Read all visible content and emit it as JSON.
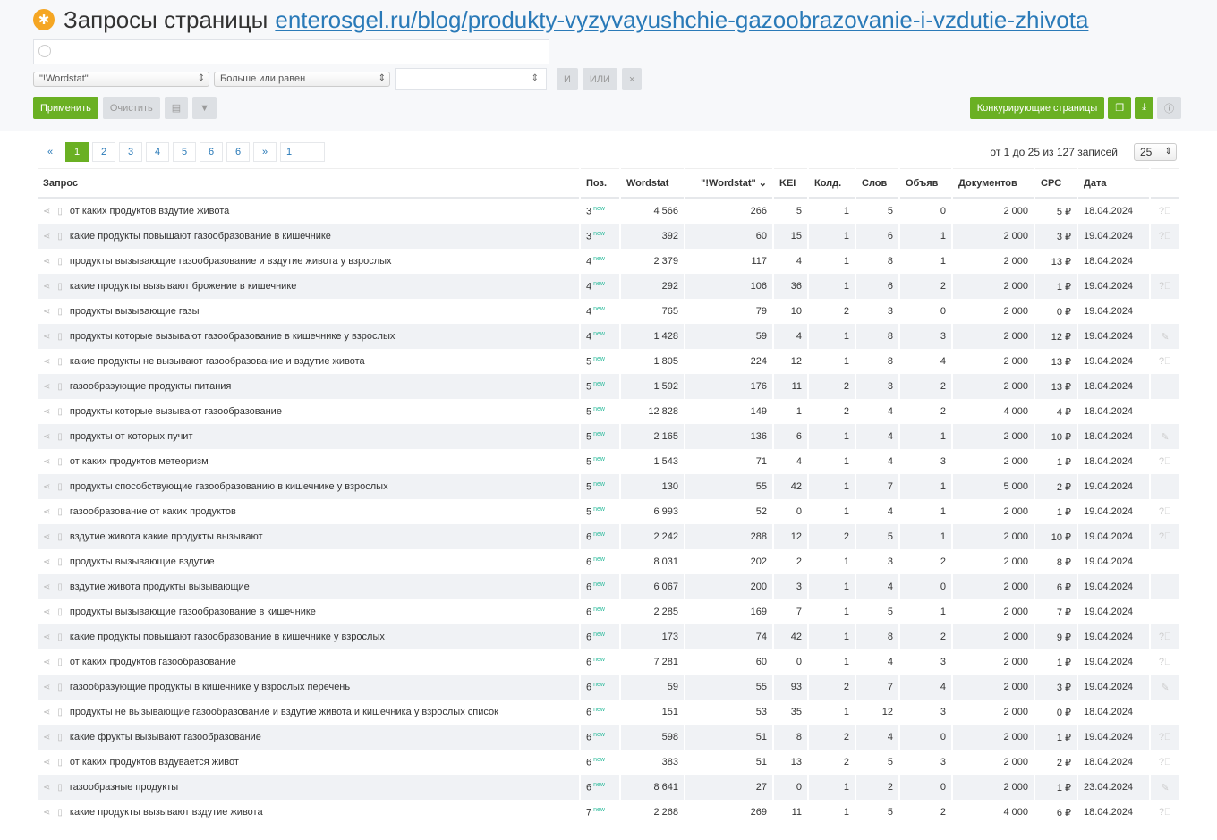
{
  "header": {
    "title": "Запросы страницы",
    "url": "enterosgel.ru/blog/produkty-vyzyvayushchie-gazoobrazovanie-i-vzdutie-zhivota"
  },
  "search": {
    "placeholder": ""
  },
  "filter": {
    "field": "\"!Wordstat\"",
    "operator": "Больше или равен",
    "value": "",
    "and": "И",
    "or": "ИЛИ",
    "remove": "×"
  },
  "actions": {
    "apply": "Применить",
    "clear": "Очистить",
    "competitors": "Конкурирующие страницы"
  },
  "colors": {
    "accent": "#6ab023",
    "link": "#2a7ab8",
    "new_badge": "#2bbb9b"
  },
  "pagination": {
    "prev": "«",
    "pages": [
      "1",
      "2",
      "3",
      "4",
      "5",
      "6",
      "6"
    ],
    "next": "»",
    "jump": "1",
    "current": "1"
  },
  "summary": "от 1 до 25 из 127 записей",
  "per_page": "25",
  "columns": [
    "Запрос",
    "Поз.",
    "Wordstat",
    "\"!Wordstat\"",
    "KEI",
    "Колд.",
    "Слов",
    "Объяв",
    "Документов",
    "CPC",
    "Дата"
  ],
  "badge": "new",
  "rows": [
    [
      "от каких продуктов вздутие живота",
      "3",
      "4 566",
      "266",
      "5",
      "1",
      "5",
      "0",
      "2 000",
      "5 ₽",
      "18.04.2024",
      "help"
    ],
    [
      "какие продукты повышают газообразование в кишечнике",
      "3",
      "392",
      "60",
      "15",
      "1",
      "6",
      "1",
      "2 000",
      "3 ₽",
      "19.04.2024",
      "help"
    ],
    [
      "продукты вызывающие газообразование и вздутие живота у взрослых",
      "4",
      "2 379",
      "117",
      "4",
      "1",
      "8",
      "1",
      "2 000",
      "13 ₽",
      "18.04.2024",
      ""
    ],
    [
      "какие продукты вызывают брожение в кишечнике",
      "4",
      "292",
      "106",
      "36",
      "1",
      "6",
      "2",
      "2 000",
      "1 ₽",
      "19.04.2024",
      "help"
    ],
    [
      "продукты вызывающие газы",
      "4",
      "765",
      "79",
      "10",
      "2",
      "3",
      "0",
      "2 000",
      "0 ₽",
      "19.04.2024",
      ""
    ],
    [
      "продукты которые вызывают газообразование в кишечнике у взрослых",
      "4",
      "1 428",
      "59",
      "4",
      "1",
      "8",
      "3",
      "2 000",
      "12 ₽",
      "19.04.2024",
      "edit"
    ],
    [
      "какие продукты не вызывают газообразование и вздутие живота",
      "5",
      "1 805",
      "224",
      "12",
      "1",
      "8",
      "4",
      "2 000",
      "13 ₽",
      "19.04.2024",
      "help"
    ],
    [
      "газообразующие продукты питания",
      "5",
      "1 592",
      "176",
      "11",
      "2",
      "3",
      "2",
      "2 000",
      "13 ₽",
      "18.04.2024",
      ""
    ],
    [
      "продукты которые вызывают газообразование",
      "5",
      "12 828",
      "149",
      "1",
      "2",
      "4",
      "2",
      "4 000",
      "4 ₽",
      "18.04.2024",
      ""
    ],
    [
      "продукты от которых пучит",
      "5",
      "2 165",
      "136",
      "6",
      "1",
      "4",
      "1",
      "2 000",
      "10 ₽",
      "18.04.2024",
      "edit"
    ],
    [
      "от каких продуктов метеоризм",
      "5",
      "1 543",
      "71",
      "4",
      "1",
      "4",
      "3",
      "2 000",
      "1 ₽",
      "18.04.2024",
      "help"
    ],
    [
      "продукты способствующие газообразованию в кишечнике у взрослых",
      "5",
      "130",
      "55",
      "42",
      "1",
      "7",
      "1",
      "5 000",
      "2 ₽",
      "19.04.2024",
      ""
    ],
    [
      "газообразование от каких продуктов",
      "5",
      "6 993",
      "52",
      "0",
      "1",
      "4",
      "1",
      "2 000",
      "1 ₽",
      "19.04.2024",
      "help"
    ],
    [
      "вздутие живота какие продукты вызывают",
      "6",
      "2 242",
      "288",
      "12",
      "2",
      "5",
      "1",
      "2 000",
      "10 ₽",
      "19.04.2024",
      "help"
    ],
    [
      "продукты вызывающие вздутие",
      "6",
      "8 031",
      "202",
      "2",
      "1",
      "3",
      "2",
      "2 000",
      "8 ₽",
      "19.04.2024",
      ""
    ],
    [
      "вздутие живота продукты вызывающие",
      "6",
      "6 067",
      "200",
      "3",
      "1",
      "4",
      "0",
      "2 000",
      "6 ₽",
      "19.04.2024",
      ""
    ],
    [
      "продукты вызывающие газообразование в кишечнике",
      "6",
      "2 285",
      "169",
      "7",
      "1",
      "5",
      "1",
      "2 000",
      "7 ₽",
      "19.04.2024",
      ""
    ],
    [
      "какие продукты повышают газообразование в кишечнике у взрослых",
      "6",
      "173",
      "74",
      "42",
      "1",
      "8",
      "2",
      "2 000",
      "9 ₽",
      "19.04.2024",
      "help"
    ],
    [
      "от каких продуктов газообразование",
      "6",
      "7 281",
      "60",
      "0",
      "1",
      "4",
      "3",
      "2 000",
      "1 ₽",
      "19.04.2024",
      "help"
    ],
    [
      "газообразующие продукты в кишечнике у взрослых перечень",
      "6",
      "59",
      "55",
      "93",
      "2",
      "7",
      "4",
      "2 000",
      "3 ₽",
      "19.04.2024",
      "edit"
    ],
    [
      "продукты не вызывающие газообразование и вздутие живота и кишечника у взрослых список",
      "6",
      "151",
      "53",
      "35",
      "1",
      "12",
      "3",
      "2 000",
      "0 ₽",
      "18.04.2024",
      ""
    ],
    [
      "какие фрукты вызывают газообразование",
      "6",
      "598",
      "51",
      "8",
      "2",
      "4",
      "0",
      "2 000",
      "1 ₽",
      "19.04.2024",
      "help"
    ],
    [
      "от каких продуктов вздувается живот",
      "6",
      "383",
      "51",
      "13",
      "2",
      "5",
      "3",
      "2 000",
      "2 ₽",
      "18.04.2024",
      "help"
    ],
    [
      "газообразные продукты",
      "6",
      "8 641",
      "27",
      "0",
      "1",
      "2",
      "0",
      "2 000",
      "1 ₽",
      "23.04.2024",
      "edit"
    ],
    [
      "какие продукты вызывают вздутие живота",
      "7",
      "2 268",
      "269",
      "11",
      "1",
      "5",
      "2",
      "4 000",
      "6 ₽",
      "18.04.2024",
      "help"
    ]
  ]
}
